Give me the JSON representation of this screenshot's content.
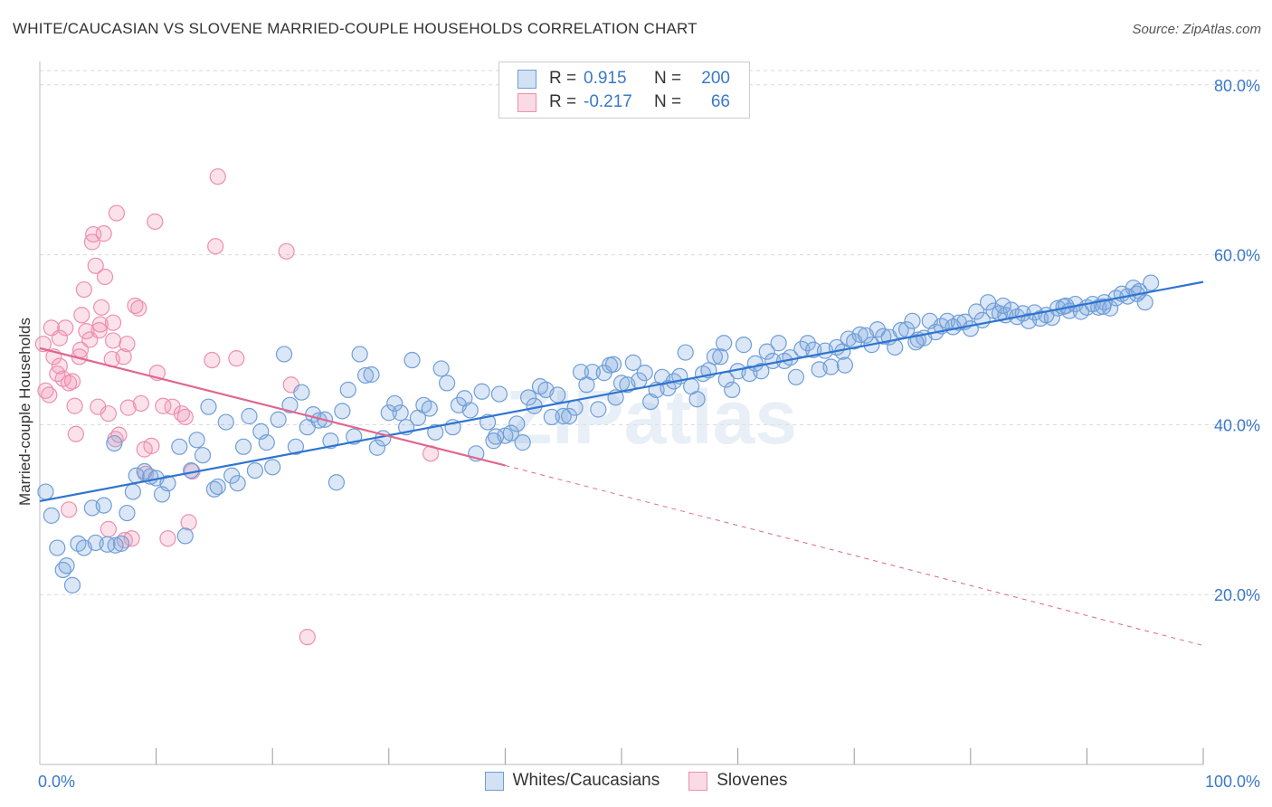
{
  "header": {
    "title": "WHITE/CAUCASIAN VS SLOVENE MARRIED-COUPLE HOUSEHOLDS CORRELATION CHART",
    "source": "Source: ZipAtlas.com"
  },
  "watermark": "ZIPatlas",
  "legend": {
    "rows": [
      {
        "r_label": "R =",
        "r_value": "0.915",
        "n_label": "N =",
        "n_value": "200"
      },
      {
        "r_label": "R =",
        "r_value": "-0.217",
        "n_label": "N =",
        "n_value": "66"
      }
    ]
  },
  "colors": {
    "blue": "#6f9ed8",
    "blue_fill": "rgba(126,168,224,0.28)",
    "blue_line": "#2f74d0",
    "pink": "#ee8fae",
    "pink_fill": "rgba(240,150,180,0.28)",
    "pink_line": "#e06690",
    "tick_text": "#3b78c8"
  },
  "chart_data": {
    "type": "scatter",
    "title": "WHITE/CAUCASIAN VS SLOVENE MARRIED-COUPLE HOUSEHOLDS CORRELATION CHART",
    "xlabel": "",
    "ylabel": "Married-couple Households",
    "xlim": [
      0,
      100
    ],
    "ylim": [
      0,
      82
    ],
    "x_tick_labels": [
      "0.0%",
      "100.0%"
    ],
    "y_ticks": [
      20,
      40,
      60,
      80
    ],
    "y_tick_labels": [
      "20.0%",
      "40.0%",
      "60.0%",
      "80.0%"
    ],
    "grid": true,
    "legend_position": "top-center",
    "series": [
      {
        "name": "Whites/Caucasians",
        "color": "#6f9ed8",
        "trend": {
          "x": [
            0,
            100
          ],
          "y": [
            31.0,
            56.8
          ]
        },
        "points": [
          [
            0.5,
            32.1
          ],
          [
            1,
            29.3
          ],
          [
            1.5,
            25.5
          ],
          [
            2,
            22.9
          ],
          [
            2.3,
            23.4
          ],
          [
            2.8,
            21.1
          ],
          [
            3.3,
            26.0
          ],
          [
            3.8,
            25.5
          ],
          [
            4.5,
            30.2
          ],
          [
            4.8,
            26.1
          ],
          [
            5.5,
            30.5
          ],
          [
            5.8,
            25.9
          ],
          [
            6.5,
            25.8
          ],
          [
            7,
            26.0
          ],
          [
            6.4,
            37.8
          ],
          [
            7.5,
            29.6
          ],
          [
            8,
            32.1
          ],
          [
            8.3,
            34.0
          ],
          [
            9,
            34.5
          ],
          [
            9.5,
            33.9
          ],
          [
            10,
            33.7
          ],
          [
            10.5,
            31.8
          ],
          [
            11,
            33.1
          ],
          [
            12,
            37.4
          ],
          [
            12.5,
            26.9
          ],
          [
            13,
            34.6
          ],
          [
            13.5,
            38.2
          ],
          [
            14,
            36.4
          ],
          [
            14.5,
            42.1
          ],
          [
            15,
            32.4
          ],
          [
            15.3,
            32.7
          ],
          [
            16,
            40.3
          ],
          [
            16.5,
            34.0
          ],
          [
            17,
            33.1
          ],
          [
            17.5,
            37.4
          ],
          [
            18,
            41.0
          ],
          [
            18.5,
            34.6
          ],
          [
            19,
            39.2
          ],
          [
            19.5,
            37.9
          ],
          [
            20,
            35.0
          ],
          [
            20.5,
            40.6
          ],
          [
            21,
            48.3
          ],
          [
            21.5,
            42.3
          ],
          [
            22,
            37.4
          ],
          [
            22.5,
            43.8
          ],
          [
            23,
            39.7
          ],
          [
            23.5,
            41.2
          ],
          [
            24,
            40.5
          ],
          [
            24.5,
            40.6
          ],
          [
            25,
            38.1
          ],
          [
            25.5,
            33.2
          ],
          [
            26,
            41.6
          ],
          [
            26.5,
            44.1
          ],
          [
            27,
            38.6
          ],
          [
            27.5,
            48.3
          ],
          [
            28,
            45.8
          ],
          [
            28.5,
            45.9
          ],
          [
            29,
            37.3
          ],
          [
            29.5,
            38.4
          ],
          [
            30,
            41.4
          ],
          [
            30.5,
            42.5
          ],
          [
            31,
            41.4
          ],
          [
            31.5,
            39.7
          ],
          [
            32,
            47.6
          ],
          [
            32.5,
            40.8
          ],
          [
            33,
            42.3
          ],
          [
            33.5,
            41.9
          ],
          [
            34,
            39.1
          ],
          [
            34.5,
            46.6
          ],
          [
            35,
            44.9
          ],
          [
            35.5,
            39.7
          ],
          [
            36,
            42.3
          ],
          [
            36.5,
            43.1
          ],
          [
            37,
            41.7
          ],
          [
            37.5,
            36.6
          ],
          [
            38,
            43.9
          ],
          [
            38.5,
            40.3
          ],
          [
            39,
            38.1
          ],
          [
            39.5,
            43.6
          ],
          [
            40,
            38.7
          ],
          [
            40.5,
            39.0
          ],
          [
            41,
            40.1
          ],
          [
            41.5,
            37.9
          ],
          [
            42,
            43.2
          ],
          [
            42.5,
            42.2
          ],
          [
            43,
            44.5
          ],
          [
            43.5,
            44.1
          ],
          [
            44,
            40.9
          ],
          [
            44.5,
            43.5
          ],
          [
            45,
            41.0
          ],
          [
            45.5,
            41.0
          ],
          [
            46,
            42.0
          ],
          [
            46.5,
            46.2
          ],
          [
            47,
            44.7
          ],
          [
            47.5,
            46.2
          ],
          [
            48,
            41.8
          ],
          [
            48.5,
            46.1
          ],
          [
            49,
            47.0
          ],
          [
            49.5,
            43.2
          ],
          [
            50,
            44.9
          ],
          [
            50.5,
            44.7
          ],
          [
            51,
            47.3
          ],
          [
            51.5,
            45.2
          ],
          [
            52,
            46.1
          ],
          [
            52.5,
            42.7
          ],
          [
            53,
            44.1
          ],
          [
            53.5,
            45.6
          ],
          [
            54,
            44.3
          ],
          [
            54.5,
            45.1
          ],
          [
            55,
            45.7
          ],
          [
            55.5,
            48.5
          ],
          [
            56,
            44.5
          ],
          [
            56.5,
            43.0
          ],
          [
            57,
            46.0
          ],
          [
            57.5,
            46.4
          ],
          [
            58,
            48.0
          ],
          [
            58.5,
            48.0
          ],
          [
            59,
            45.3
          ],
          [
            59.5,
            44.1
          ],
          [
            60,
            46.3
          ],
          [
            60.5,
            49.4
          ],
          [
            61,
            46.0
          ],
          [
            61.5,
            47.2
          ],
          [
            62,
            46.3
          ],
          [
            62.5,
            48.6
          ],
          [
            63,
            47.5
          ],
          [
            63.5,
            49.6
          ],
          [
            64,
            47.5
          ],
          [
            64.5,
            47.9
          ],
          [
            65,
            45.6
          ],
          [
            65.5,
            48.9
          ],
          [
            66,
            49.6
          ],
          [
            66.5,
            48.8
          ],
          [
            67,
            46.5
          ],
          [
            67.5,
            48.7
          ],
          [
            68,
            46.8
          ],
          [
            68.5,
            49.1
          ],
          [
            69,
            48.6
          ],
          [
            69.5,
            50.1
          ],
          [
            70,
            49.8
          ],
          [
            70.5,
            50.6
          ],
          [
            71,
            50.5
          ],
          [
            71.5,
            49.4
          ],
          [
            72,
            51.2
          ],
          [
            72.5,
            50.4
          ],
          [
            73,
            50.3
          ],
          [
            73.5,
            49.1
          ],
          [
            74,
            51.1
          ],
          [
            74.5,
            51.2
          ],
          [
            75,
            52.2
          ],
          [
            75.5,
            50.0
          ],
          [
            76,
            50.2
          ],
          [
            76.5,
            52.2
          ],
          [
            77,
            50.9
          ],
          [
            77.5,
            51.6
          ],
          [
            78,
            52.2
          ],
          [
            78.5,
            51.5
          ],
          [
            79,
            52.0
          ],
          [
            79.5,
            52.1
          ],
          [
            80,
            51.3
          ],
          [
            80.5,
            53.3
          ],
          [
            81,
            52.3
          ],
          [
            81.5,
            54.4
          ],
          [
            82,
            53.4
          ],
          [
            82.5,
            53.1
          ],
          [
            83,
            52.9
          ],
          [
            83.5,
            53.5
          ],
          [
            84,
            52.7
          ],
          [
            84.5,
            53.1
          ],
          [
            85,
            52.2
          ],
          [
            85.5,
            53.2
          ],
          [
            86,
            52.5
          ],
          [
            86.5,
            52.9
          ],
          [
            87,
            52.6
          ],
          [
            87.5,
            53.7
          ],
          [
            88,
            53.9
          ],
          [
            88.5,
            53.4
          ],
          [
            89,
            54.2
          ],
          [
            89.5,
            53.3
          ],
          [
            90,
            53.8
          ],
          [
            90.5,
            54.2
          ],
          [
            91,
            53.8
          ],
          [
            91.5,
            54.4
          ],
          [
            92,
            53.7
          ],
          [
            92.5,
            54.9
          ],
          [
            93,
            55.4
          ],
          [
            93.5,
            55.1
          ],
          [
            94,
            56.1
          ],
          [
            94.5,
            55.7
          ],
          [
            95,
            54.4
          ],
          [
            95.5,
            56.7
          ],
          [
            39.2,
            38.6
          ],
          [
            49.3,
            47.1
          ],
          [
            58.8,
            49.6
          ],
          [
            69.2,
            47.0
          ],
          [
            75.3,
            49.7
          ],
          [
            82.8,
            54.0
          ],
          [
            88.2,
            54.0
          ],
          [
            91.4,
            53.9
          ],
          [
            94.3,
            55.4
          ]
        ]
      },
      {
        "name": "Slovenes",
        "color": "#ee8fae",
        "trend": {
          "x": [
            0,
            40
          ],
          "y": [
            49.0,
            35.2
          ]
        },
        "trend_dashed": {
          "x": [
            40,
            100
          ],
          "y": [
            35.2,
            14.0
          ]
        },
        "points": [
          [
            0.3,
            49.5
          ],
          [
            0.5,
            44.0
          ],
          [
            0.8,
            43.5
          ],
          [
            1,
            51.4
          ],
          [
            1.2,
            48.0
          ],
          [
            1.5,
            46.0
          ],
          [
            1.7,
            50.2
          ],
          [
            2,
            45.4
          ],
          [
            2.2,
            51.4
          ],
          [
            2.5,
            44.9
          ],
          [
            2.5,
            30.0
          ],
          [
            2.8,
            45.1
          ],
          [
            3,
            42.2
          ],
          [
            3.1,
            38.9
          ],
          [
            3.4,
            48.0
          ],
          [
            3.5,
            48.8
          ],
          [
            3.6,
            52.9
          ],
          [
            3.8,
            55.9
          ],
          [
            4,
            51.0
          ],
          [
            4.3,
            50.0
          ],
          [
            4.5,
            61.5
          ],
          [
            4.6,
            62.4
          ],
          [
            4.8,
            58.7
          ],
          [
            5,
            42.1
          ],
          [
            5.1,
            51.1
          ],
          [
            5.2,
            51.8
          ],
          [
            5.3,
            53.8
          ],
          [
            5.5,
            62.5
          ],
          [
            5.6,
            57.4
          ],
          [
            5.9,
            27.7
          ],
          [
            5.9,
            41.3
          ],
          [
            6.2,
            47.7
          ],
          [
            6.3,
            49.9
          ],
          [
            6.5,
            38.3
          ],
          [
            6.6,
            64.9
          ],
          [
            6.8,
            38.8
          ],
          [
            7.2,
            48.0
          ],
          [
            7.5,
            49.5
          ],
          [
            7.6,
            42.0
          ],
          [
            7.9,
            26.6
          ],
          [
            8.2,
            54.0
          ],
          [
            8.5,
            53.7
          ],
          [
            8.7,
            42.5
          ],
          [
            9,
            37.1
          ],
          [
            9.1,
            34.2
          ],
          [
            9.6,
            37.5
          ],
          [
            9.9,
            63.9
          ],
          [
            10.1,
            46.1
          ],
          [
            10.6,
            42.2
          ],
          [
            11,
            26.6
          ],
          [
            11.4,
            42.1
          ],
          [
            12.2,
            41.3
          ],
          [
            12.5,
            40.9
          ],
          [
            12.8,
            28.5
          ],
          [
            13.1,
            34.5
          ],
          [
            14.8,
            47.6
          ],
          [
            15.1,
            61.0
          ],
          [
            15.3,
            69.2
          ],
          [
            16.9,
            47.8
          ],
          [
            21.2,
            60.4
          ],
          [
            21.6,
            44.7
          ],
          [
            23,
            15.0
          ],
          [
            7.3,
            26.4
          ],
          [
            33.6,
            36.6
          ],
          [
            6.3,
            52.0
          ],
          [
            1.7,
            46.9
          ]
        ]
      }
    ]
  },
  "bottom_legend": [
    {
      "label": "Whites/Caucasians"
    },
    {
      "label": "Slovenes"
    }
  ]
}
